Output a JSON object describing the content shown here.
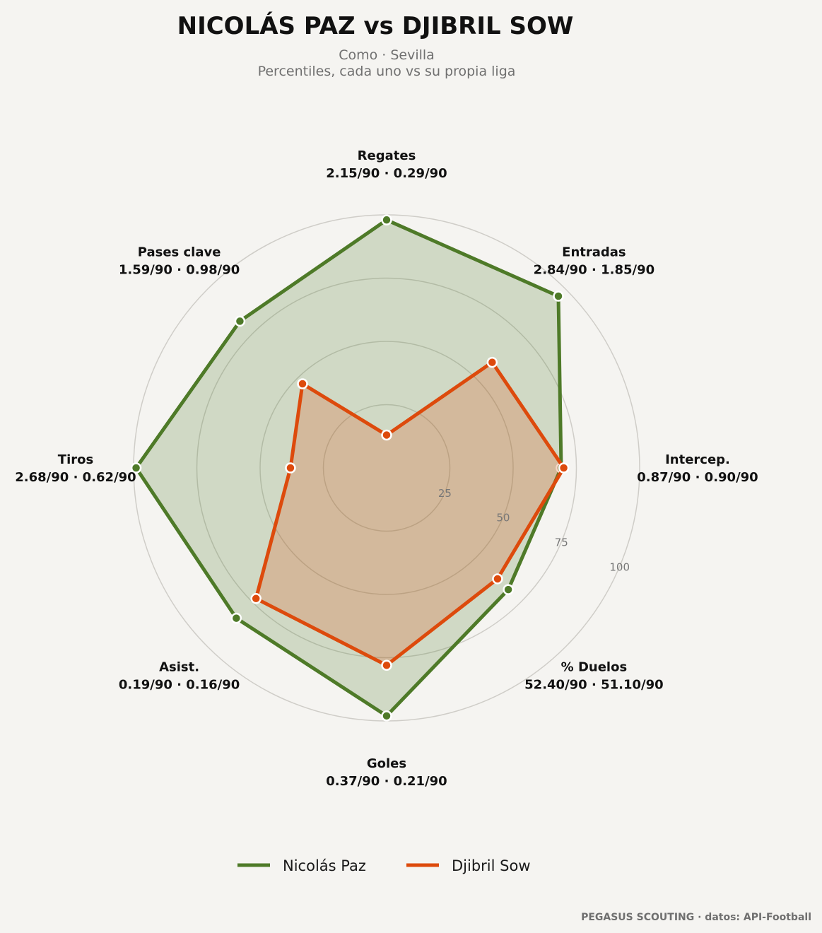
{
  "title": "NICOLÁS PAZ  vs  DJIBRIL SOW",
  "subtitle_line1": "Como · Sevilla",
  "subtitle_line2": "Percentiles, cada uno vs su propia liga",
  "credit": "PEGASUS SCOUTING · datos: API-Football",
  "chart_data": {
    "type": "radar",
    "title": "NICOLÁS PAZ  vs  DJIBRIL SOW",
    "subtitle": "Como · Sevilla — Percentiles, cada uno vs su propia liga",
    "rlim": [
      0,
      100
    ],
    "rticks": [
      "25",
      "50",
      "75",
      "100"
    ],
    "grid": true,
    "legend": "bottom-center",
    "axes": [
      {
        "name": "Regates",
        "values_label": "2.15/90 · 0.29/90"
      },
      {
        "name": "Entradas",
        "values_label": "2.84/90 · 1.85/90"
      },
      {
        "name": "Intercep.",
        "values_label": "0.87/90 · 0.90/90"
      },
      {
        "name": "% Duelos",
        "values_label": "52.40/90 · 51.10/90"
      },
      {
        "name": "Goles",
        "values_label": "0.37/90 · 0.21/90"
      },
      {
        "name": "Asist.",
        "values_label": "0.19/90 · 0.16/90"
      },
      {
        "name": "Tiros",
        "values_label": "2.68/90 · 0.62/90"
      },
      {
        "name": "Pases clave",
        "values_label": "1.59/90 · 0.98/90"
      }
    ],
    "series": [
      {
        "name": "Nicolás Paz",
        "color": "#4e7a28",
        "fill": "#4e7a28",
        "values": [
          98,
          96,
          69,
          68,
          98,
          84,
          99,
          82
        ]
      },
      {
        "name": "Djibril Sow",
        "color": "#dd4a0c",
        "fill": "#dd4a0c",
        "values": [
          13,
          59,
          70,
          62,
          78,
          73,
          38,
          47
        ]
      }
    ]
  }
}
